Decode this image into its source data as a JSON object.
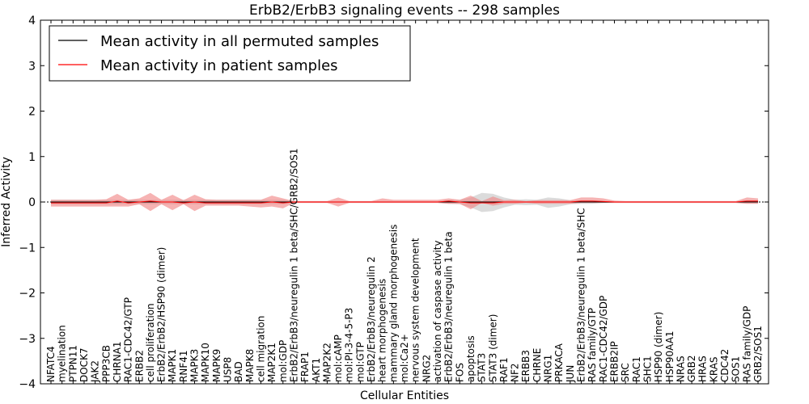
{
  "chart_data": {
    "type": "line",
    "title": "ErbB2/ErbB3 signaling events -- 298 samples",
    "xlabel": "Cellular Entities",
    "ylabel": "Inferred Activity",
    "ylim": [
      -4,
      4
    ],
    "yticks": [
      "−4",
      "−3",
      "−2",
      "−1",
      "0",
      "1",
      "2",
      "3",
      "4"
    ],
    "ytick_values": [
      -4,
      -3,
      -2,
      -1,
      0,
      1,
      2,
      3,
      4
    ],
    "legend_position": "top-left",
    "colors": {
      "permuted": "#000000",
      "patient": "#ff0000",
      "patient_band": "#f08080",
      "permuted_band": "#b0b0b0"
    },
    "categories": [
      "NFATC4",
      "myelination",
      "PTPN11",
      "DOCK7",
      "JAK2",
      "PPP3CB",
      "CHRNA1",
      "RAC1-CDC42/GTP",
      "ERBB2",
      "cell proliferation",
      "ErbB2/ErbB2/HSP90 (dimer)",
      "MAPK1",
      "RNF41",
      "MAPK3",
      "MAPK10",
      "MAPK9",
      "USP8",
      "BAD",
      "MAPK8",
      "cell migration",
      "MAP2K1",
      "mol:GDP",
      "ErbB2/ErbB3/neuregulin 1 beta/SHC/GRB2/SOS1",
      "FRAP1",
      "AKT1",
      "MAP2K2",
      "mol:cAMP",
      "mol:PI-3-4-5-P3",
      "mol:GTP",
      "ErbB2/ErbB3/neuregulin 2",
      "heart morphogenesis",
      "mammary gland morphogenesis",
      "mol:Ca2+",
      "nervous system development",
      "NRG2",
      "activation of caspase activity",
      "ErbB2/ErbB3/neuregulin 1 beta",
      "FOS",
      "apoptosis",
      "STAT3",
      "STAT3 (dimer)",
      "RAF1",
      "NF2",
      "ERBB3",
      "CHRNE",
      "NRG1",
      "PRKACA",
      "JUN",
      "ErbB2/ErbB3/neuregulin 1 beta/SHC",
      "RAS family/GTP",
      "RAC1-CDC42/GDP",
      "ERBB2IP",
      "SRC",
      "RAC1",
      "SHC1",
      "HSP90 (dimer)",
      "HSP90AA1",
      "NRAS",
      "GRB2",
      "HRAS",
      "KRAS",
      "CDC42",
      "SOS1",
      "RAS family/GDP",
      "GRB2/SOS1"
    ],
    "series": [
      {
        "name": "Mean activity in all permuted samples",
        "color": "#000000",
        "values": [
          0,
          0,
          0,
          0,
          0,
          0,
          0,
          0,
          0,
          0,
          0,
          0,
          0,
          0,
          0,
          0,
          0,
          0,
          0,
          0,
          0,
          0,
          0,
          0,
          0,
          0,
          0,
          0,
          0,
          0,
          0,
          0,
          0,
          0,
          0,
          0,
          0,
          0,
          0,
          0,
          0,
          0,
          0,
          0,
          0,
          0,
          0,
          0,
          0,
          0,
          0,
          0,
          0,
          0,
          0,
          0,
          0,
          0,
          0,
          0,
          0,
          0,
          0,
          0,
          0
        ],
        "band_upper": [
          0.05,
          0.05,
          0.05,
          0.05,
          0.05,
          0.05,
          0.05,
          0.05,
          0.05,
          0.05,
          0.05,
          0.05,
          0.05,
          0.05,
          0.05,
          0.05,
          0.05,
          0.05,
          0.05,
          0.05,
          0.05,
          0.05,
          0.02,
          0.02,
          0.02,
          0.02,
          0.02,
          0.02,
          0.02,
          0.02,
          0.02,
          0.02,
          0.02,
          0.02,
          0.02,
          0.02,
          0.04,
          0.05,
          0.1,
          0.2,
          0.18,
          0.1,
          0.05,
          0.06,
          0.05,
          0.1,
          0.08,
          0.04,
          0.03,
          0.03,
          0.02,
          0.02,
          0.02,
          0.02,
          0.02,
          0.02,
          0.02,
          0.02,
          0.02,
          0.02,
          0.02,
          0.02,
          0.02,
          0.03,
          0.03
        ],
        "band_lower": [
          -0.05,
          -0.05,
          -0.05,
          -0.05,
          -0.05,
          -0.05,
          -0.05,
          -0.05,
          -0.05,
          -0.05,
          -0.05,
          -0.05,
          -0.05,
          -0.05,
          -0.05,
          -0.05,
          -0.05,
          -0.05,
          -0.05,
          -0.05,
          -0.05,
          -0.05,
          -0.02,
          -0.02,
          -0.02,
          -0.02,
          -0.02,
          -0.02,
          -0.02,
          -0.02,
          -0.02,
          -0.02,
          -0.02,
          -0.02,
          -0.02,
          -0.02,
          -0.04,
          -0.05,
          -0.12,
          -0.22,
          -0.2,
          -0.12,
          -0.06,
          -0.07,
          -0.06,
          -0.13,
          -0.1,
          -0.05,
          -0.04,
          -0.04,
          -0.02,
          -0.02,
          -0.02,
          -0.02,
          -0.02,
          -0.02,
          -0.02,
          -0.02,
          -0.02,
          -0.02,
          -0.02,
          -0.02,
          -0.02,
          -0.03,
          -0.03
        ]
      },
      {
        "name": "Mean activity in patient samples",
        "color": "#ff0000",
        "values": [
          -0.02,
          -0.02,
          -0.02,
          -0.02,
          -0.02,
          -0.02,
          0.02,
          -0.02,
          0.0,
          0.02,
          0.0,
          0.0,
          -0.02,
          0.0,
          -0.02,
          -0.02,
          -0.02,
          -0.02,
          -0.02,
          -0.02,
          0.0,
          -0.02,
          0.0,
          0.0,
          0.0,
          0.0,
          0.0,
          0.0,
          0.0,
          0.0,
          0.0,
          0.0,
          0.0,
          0.0,
          0.0,
          0.0,
          0.02,
          0.0,
          -0.02,
          -0.02,
          -0.02,
          0.0,
          0.0,
          0.0,
          0.0,
          0.0,
          0.0,
          0.0,
          0.02,
          0.02,
          0.01,
          0.0,
          0.0,
          0.0,
          0.0,
          0.0,
          0.0,
          0.0,
          0.0,
          0.0,
          0.0,
          0.0,
          0.0,
          0.02,
          0.02
        ],
        "band_upper": [
          0.05,
          0.05,
          0.05,
          0.05,
          0.05,
          0.06,
          0.18,
          0.05,
          0.08,
          0.2,
          0.05,
          0.16,
          0.04,
          0.16,
          0.06,
          0.05,
          0.05,
          0.05,
          0.05,
          0.05,
          0.14,
          0.08,
          0.02,
          0.02,
          0.02,
          0.02,
          0.1,
          0.02,
          0.02,
          0.02,
          0.08,
          0.05,
          0.05,
          0.05,
          0.05,
          0.05,
          0.08,
          0.05,
          0.14,
          0.02,
          0.12,
          0.04,
          0.05,
          0.02,
          0.04,
          0.04,
          0.04,
          0.04,
          0.1,
          0.1,
          0.08,
          0.03,
          0.02,
          0.02,
          0.02,
          0.02,
          0.02,
          0.02,
          0.02,
          0.02,
          0.02,
          0.02,
          0.02,
          0.1,
          0.08
        ],
        "band_lower": [
          -0.1,
          -0.1,
          -0.1,
          -0.1,
          -0.1,
          -0.1,
          -0.1,
          -0.1,
          -0.05,
          -0.2,
          -0.05,
          -0.18,
          -0.05,
          -0.2,
          -0.08,
          -0.08,
          -0.08,
          -0.08,
          -0.1,
          -0.12,
          -0.1,
          -0.14,
          -0.02,
          -0.02,
          -0.02,
          -0.02,
          -0.1,
          -0.02,
          -0.02,
          -0.02,
          -0.02,
          -0.02,
          -0.02,
          -0.02,
          -0.02,
          -0.02,
          -0.04,
          -0.04,
          -0.16,
          -0.02,
          -0.08,
          -0.04,
          -0.04,
          -0.02,
          -0.04,
          -0.04,
          -0.04,
          -0.04,
          -0.02,
          -0.02,
          -0.02,
          -0.02,
          -0.02,
          -0.02,
          -0.02,
          -0.02,
          -0.02,
          -0.02,
          -0.02,
          -0.02,
          -0.02,
          -0.02,
          -0.02,
          -0.04,
          -0.04
        ]
      }
    ]
  }
}
